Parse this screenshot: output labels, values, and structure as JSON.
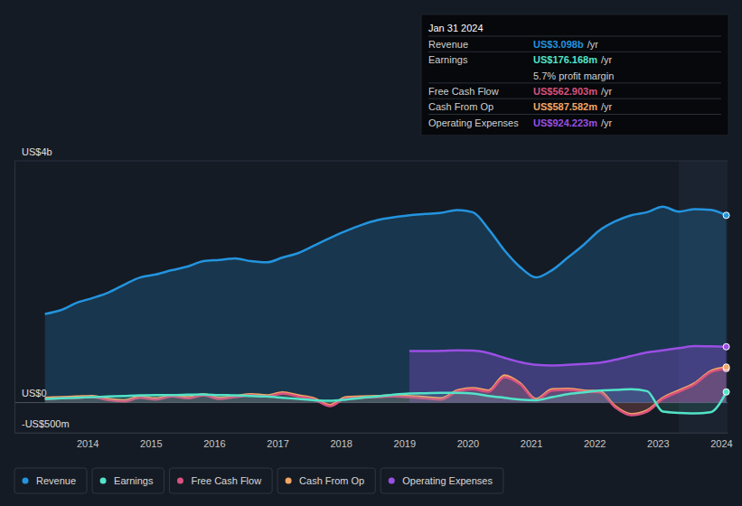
{
  "chart_data": {
    "type": "line",
    "x": [
      2013.33,
      2013.58,
      2013.83,
      2014.08,
      2014.33,
      2014.58,
      2014.83,
      2015.08,
      2015.33,
      2015.58,
      2015.83,
      2016.08,
      2016.33,
      2016.58,
      2016.83,
      2017.08,
      2017.33,
      2017.58,
      2017.83,
      2018.08,
      2018.33,
      2018.58,
      2018.83,
      2019.08,
      2019.33,
      2019.58,
      2019.83,
      2020.08,
      2020.33,
      2020.58,
      2020.83,
      2021.08,
      2021.33,
      2021.58,
      2021.83,
      2022.08,
      2022.33,
      2022.58,
      2022.83,
      2023.08,
      2023.33,
      2023.58,
      2023.83,
      2024.08
    ],
    "series": [
      {
        "name": "Revenue",
        "color": "#2394df",
        "values": [
          1467,
          1530,
          1650,
          1730,
          1820,
          1950,
          2070,
          2120,
          2190,
          2250,
          2340,
          2360,
          2385,
          2340,
          2320,
          2400,
          2475,
          2600,
          2725,
          2840,
          2940,
          3020,
          3065,
          3100,
          3120,
          3140,
          3185,
          3150,
          2870,
          2520,
          2240,
          2070,
          2190,
          2400,
          2610,
          2850,
          3000,
          3100,
          3150,
          3240,
          3160,
          3200,
          3190,
          3098
        ]
      },
      {
        "name": "Earnings",
        "color": "#52e3c8",
        "values": [
          60,
          70,
          80,
          90,
          100,
          110,
          120,
          125,
          125,
          130,
          135,
          125,
          120,
          110,
          100,
          80,
          60,
          40,
          30,
          50,
          80,
          100,
          130,
          150,
          155,
          160,
          160,
          150,
          110,
          80,
          50,
          40,
          90,
          140,
          170,
          200,
          210,
          220,
          190,
          -150,
          -170,
          -180,
          -160,
          176
        ]
      },
      {
        "name": "Free Cash Flow",
        "color": "#d9527e",
        "values": [
          60,
          70,
          80,
          90,
          40,
          20,
          80,
          50,
          100,
          70,
          120,
          60,
          90,
          120,
          100,
          150,
          100,
          50,
          -60,
          70,
          80,
          90,
          100,
          90,
          70,
          50,
          180,
          220,
          180,
          420,
          300,
          40,
          200,
          210,
          180,
          170,
          -80,
          -210,
          -150,
          60,
          180,
          300,
          500,
          563
        ]
      },
      {
        "name": "Cash From Op",
        "color": "#f2a766",
        "values": [
          80,
          90,
          100,
          110,
          60,
          40,
          100,
          70,
          120,
          90,
          140,
          80,
          110,
          140,
          120,
          170,
          120,
          70,
          -40,
          90,
          100,
          110,
          120,
          110,
          90,
          70,
          200,
          240,
          200,
          450,
          320,
          60,
          220,
          230,
          200,
          190,
          -60,
          -190,
          -130,
          80,
          200,
          320,
          520,
          588
        ]
      },
      {
        "name": "Operating Expenses",
        "color": "#9a4fe3",
        "values": [
          null,
          null,
          null,
          null,
          null,
          null,
          null,
          null,
          null,
          null,
          null,
          null,
          null,
          null,
          null,
          null,
          null,
          null,
          null,
          null,
          null,
          null,
          null,
          853,
          853,
          855,
          865,
          860,
          820,
          740,
          670,
          625,
          615,
          625,
          640,
          660,
          710,
          770,
          830,
          865,
          900,
          935,
          930,
          924
        ]
      }
    ],
    "xlim": [
      2012.85,
      2024.1
    ],
    "xticks": [
      2014,
      2015,
      2016,
      2017,
      2018,
      2019,
      2020,
      2021,
      2022,
      2023,
      2024
    ],
    "ylim": [
      -500,
      4000
    ],
    "yticks": [
      {
        "value": -500,
        "label": "-US$500m"
      },
      {
        "value": 0,
        "label": "US$0"
      },
      {
        "value": 4000,
        "label": "US$4b"
      }
    ],
    "grid": true,
    "legend": "bottom"
  },
  "tooltip": {
    "title": "Jan 31 2024",
    "rows": [
      {
        "label": "Revenue",
        "value": "US$3.098b",
        "unit": "/yr"
      },
      {
        "label": "Earnings",
        "value": "US$176.168m",
        "unit": "/yr",
        "note": "5.7% profit margin"
      },
      {
        "label": "Free Cash Flow",
        "value": "US$562.903m",
        "unit": "/yr"
      },
      {
        "label": "Cash From Op",
        "value": "US$587.582m",
        "unit": "/yr"
      },
      {
        "label": "Operating Expenses",
        "value": "US$924.223m",
        "unit": "/yr"
      }
    ]
  }
}
